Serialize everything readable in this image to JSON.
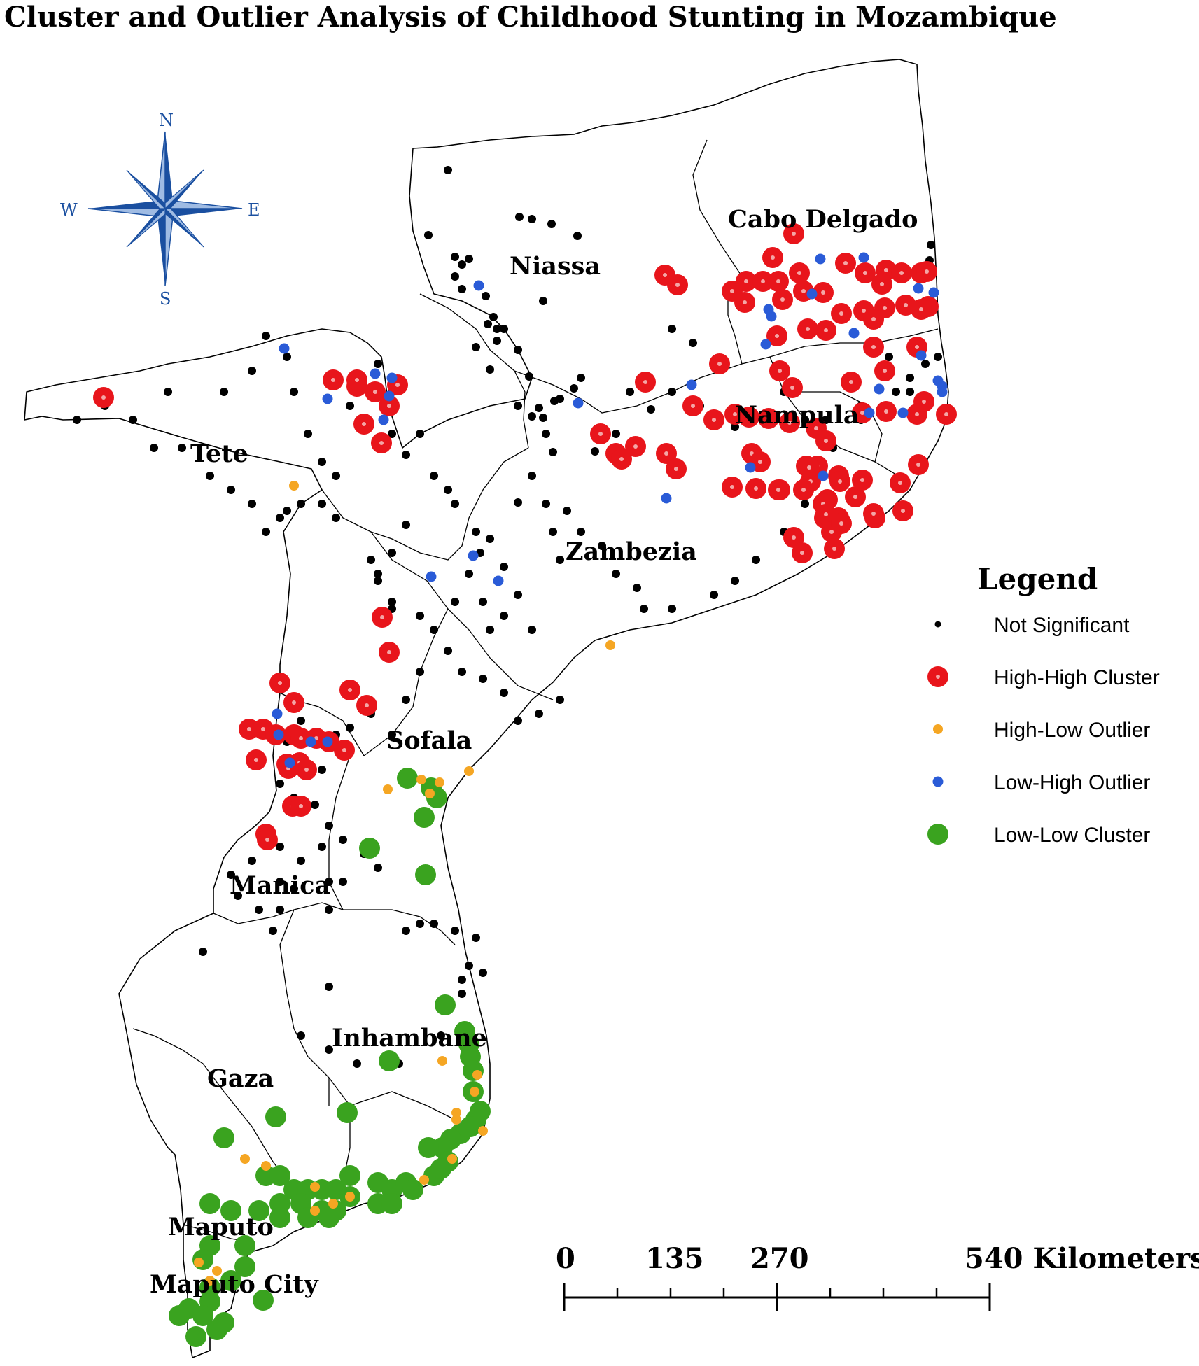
{
  "title": "Cluster and Outlier Analysis of Childhood Stunting in Mozambique",
  "compass": {
    "n": "N",
    "s": "S",
    "e": "E",
    "w": "W"
  },
  "provinces": {
    "cabo_delgado": "Cabo Delgado",
    "niassa": "Niassa",
    "nampula": "Nampula",
    "tete": "Tete",
    "zambezia": "Zambezia",
    "sofala": "Sofala",
    "manica": "Manica",
    "inhambane": "Inhambane",
    "gaza": "Gaza",
    "maputo": "Maputo",
    "maputo_city": "Maputo City"
  },
  "legend": {
    "title": "Legend",
    "items": [
      {
        "label": "Not Significant",
        "color": "#000000"
      },
      {
        "label": "High-High Cluster",
        "color": "#e8151b"
      },
      {
        "label": "High-Low Outlier",
        "color": "#f5a623"
      },
      {
        "label": "Low-High Outlier",
        "color": "#2a5bd7"
      },
      {
        "label": "Low-Low Cluster",
        "color": "#3aa31f"
      }
    ]
  },
  "scale": {
    "labels": [
      "0",
      "135",
      "270",
      "540 Kilometers"
    ]
  }
}
